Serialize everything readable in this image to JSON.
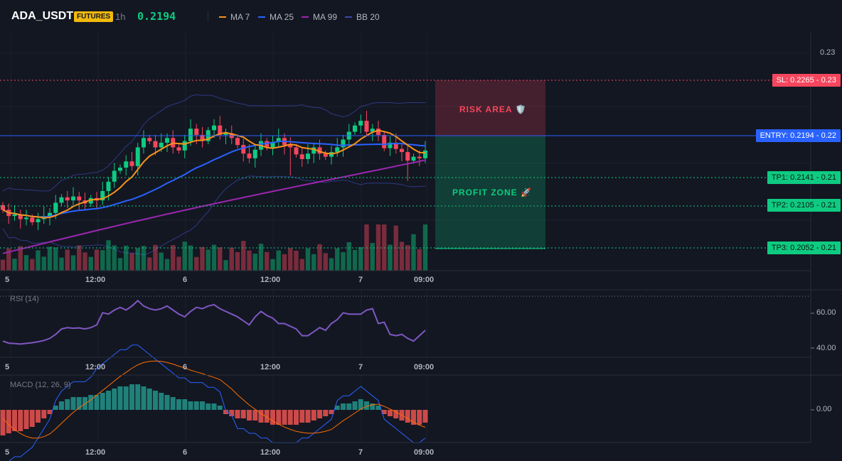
{
  "header": {
    "symbol": "ADA_USDT",
    "badge": "FUTURES",
    "timeframe": "1h",
    "price": "0.2194",
    "legend": [
      {
        "name": "MA 7",
        "color": "#f7931a"
      },
      {
        "name": "MA 25",
        "color": "#2962ff"
      },
      {
        "name": "MA 99",
        "color": "#9c27b0"
      },
      {
        "name": "BB 20",
        "color": "#3949ab"
      }
    ]
  },
  "levels": {
    "sl": "SL: 0.2265",
    "sl_axis": "0.23",
    "entry": "ENTRY: 0.2194",
    "entry_axis": "0.22",
    "tp1": "TP1: 0.2141",
    "tp1_axis": "0.21",
    "tp2": "TP2: 0.2105",
    "tp2_axis": "0.21",
    "tp3": "TP3: 0.2052",
    "tp3_axis": "0.21"
  },
  "zones": {
    "risk": "RISK AREA 🛡️",
    "profit": "PROFIT ZONE 🚀"
  },
  "axes": {
    "price_top": "0.23",
    "x_labels": [
      "5",
      "12:00",
      "6",
      "12:00",
      "7",
      "09:00"
    ],
    "rsi_ticks": [
      "60.00",
      "40.00"
    ],
    "macd_tick": "0.00"
  },
  "indicators": {
    "rsi_label": "RSI (14)",
    "macd_label": "MACD (12, 26, 9)"
  },
  "colors": {
    "up": "#0ecb81",
    "down": "#f6465d",
    "entry": "#2962ff",
    "sl": "#f6465d",
    "tp": "#0ecb81"
  },
  "chart_data": [
    {
      "type": "candlestick",
      "x_labels": [
        "5",
        "12:00",
        "6",
        "12:00",
        "7",
        "09:00"
      ],
      "ylim": [
        0.204,
        0.2345
      ],
      "closes": [
        0.2118,
        0.211,
        0.2112,
        0.2106,
        0.2108,
        0.2102,
        0.2106,
        0.211,
        0.2114,
        0.2127,
        0.2134,
        0.213,
        0.2135,
        0.213,
        0.2126,
        0.2133,
        0.213,
        0.2142,
        0.2154,
        0.2168,
        0.2172,
        0.218,
        0.2174,
        0.2198,
        0.221,
        0.2206,
        0.2198,
        0.2204,
        0.221,
        0.2198,
        0.2194,
        0.2206,
        0.2222,
        0.2214,
        0.2206,
        0.222,
        0.2226,
        0.2214,
        0.2216,
        0.221,
        0.2201,
        0.219,
        0.2184,
        0.2195,
        0.2206,
        0.2198,
        0.2205,
        0.221,
        0.2201,
        0.2198,
        0.2189,
        0.2183,
        0.219,
        0.2198,
        0.219,
        0.2186,
        0.2192,
        0.2198,
        0.2208,
        0.2218,
        0.2226,
        0.2232,
        0.2218,
        0.2222,
        0.2214,
        0.2197,
        0.2204,
        0.2196,
        0.2192,
        0.2181,
        0.2186,
        0.2184,
        0.2194
      ]
    },
    {
      "type": "line",
      "title": "RSI (14)",
      "ylim": [
        30,
        80
      ],
      "ticks": [
        60,
        40
      ],
      "values": [
        42,
        40.5,
        40.2,
        39.8,
        40.3,
        40.8,
        41.5,
        42.5,
        44,
        47,
        51,
        52,
        51.5,
        51.8,
        51,
        52,
        54,
        63,
        62,
        65,
        67,
        65,
        68,
        72,
        68,
        66,
        65,
        66,
        68,
        65,
        62,
        60,
        64,
        67,
        66,
        68,
        69,
        66,
        64,
        62,
        60,
        57,
        54,
        60,
        64,
        61,
        59,
        55,
        55,
        53,
        51,
        46,
        46,
        49,
        52,
        50,
        55,
        58,
        63,
        62,
        62,
        62,
        65,
        66,
        55,
        56,
        47,
        46,
        47,
        44,
        42,
        46,
        50
      ]
    },
    {
      "type": "bar",
      "title": "MACD (12, 26, 9)",
      "zero": 0,
      "histogram": [
        -0.0012,
        -0.0011,
        -0.001,
        -0.001,
        -0.0009,
        -0.0008,
        -0.0006,
        -0.0004,
        -0.0002,
        0.0002,
        0.0004,
        0.0005,
        0.0006,
        0.0006,
        0.0006,
        0.0007,
        0.0007,
        0.0008,
        0.0009,
        0.001,
        0.0011,
        0.0011,
        0.0012,
        0.0012,
        0.0011,
        0.001,
        0.0009,
        0.0008,
        0.0007,
        0.0006,
        0.0005,
        0.0005,
        0.0004,
        0.0004,
        0.0004,
        0.0003,
        0.0003,
        0.0002,
        -0.0002,
        -0.0003,
        -0.0004,
        -0.0004,
        -0.0005,
        -0.0005,
        -0.0006,
        -0.0006,
        -0.0007,
        -0.0007,
        -0.0007,
        -0.0007,
        -0.0007,
        -0.0006,
        -0.0006,
        -0.0005,
        -0.0004,
        -0.0003,
        -0.0002,
        0.0002,
        0.0003,
        0.0003,
        0.0004,
        0.0005,
        0.0004,
        0.0003,
        0.0002,
        -0.0002,
        -0.0003,
        -0.0004,
        -0.0005,
        -0.0006,
        -0.0007,
        -0.0007,
        -0.0006
      ]
    }
  ]
}
